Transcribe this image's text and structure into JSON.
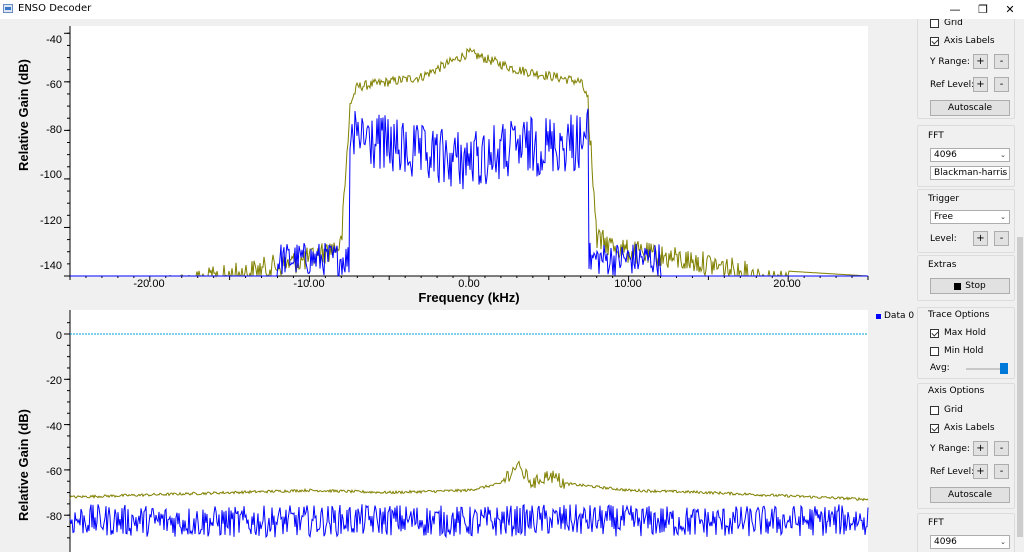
{
  "window": {
    "title": "ENSO Decoder",
    "minimize_glyph": "—",
    "restore_glyph": "❐",
    "close_glyph": "✕"
  },
  "top_plot": {
    "ylabel": "Relative Gain (dB)",
    "xlabel": "Frequency (kHz)",
    "y_ticks": [
      "-40",
      "-60",
      "-80",
      "-100",
      "-120",
      "-140"
    ],
    "x_ticks": [
      "-20.00",
      "-10.00",
      "0.00",
      "10.00",
      "20.00"
    ]
  },
  "bottom_plot": {
    "ylabel": "Relative Gain (dB)",
    "y_ticks": [
      "0",
      "-20",
      "-40",
      "-60",
      "-80"
    ],
    "legend": "Data 0"
  },
  "colors": {
    "max_hold": "#808000",
    "trace": "#0000ff",
    "ref_line": "#00a0e0",
    "accent": "#0078d7"
  },
  "sidebar": {
    "top_axis": {
      "grid_label": "Grid",
      "axis_labels_label": "Axis Labels",
      "y_range_label": "Y Range:",
      "ref_level_label": "Ref Level:",
      "plus": "+",
      "minus": "-",
      "autoscale_label": "Autoscale"
    },
    "fft": {
      "title": "FFT",
      "size": "4096",
      "window": "Blackman-harris"
    },
    "trigger": {
      "title": "Trigger",
      "mode": "Free",
      "level_label": "Level:",
      "plus": "+",
      "minus": "-"
    },
    "extras": {
      "title": "Extras",
      "stop_label": "Stop"
    },
    "trace_options": {
      "title": "Trace Options",
      "max_hold_label": "Max Hold",
      "min_hold_label": "Min Hold",
      "avg_label": "Avg:",
      "max_hold_checked": true,
      "min_hold_checked": false,
      "avg_level": 1.0
    },
    "axis_options": {
      "title": "Axis Options",
      "grid_label": "Grid",
      "axis_labels_label": "Axis Labels",
      "y_range_label": "Y Range:",
      "ref_level_label": "Ref Level:",
      "plus": "+",
      "minus": "-",
      "autoscale_label": "Autoscale",
      "grid_checked": false,
      "axis_labels_checked": true
    },
    "fft2": {
      "title": "FFT",
      "size": "4096"
    }
  },
  "chart_data": [
    {
      "type": "line",
      "xlabel": "Frequency (kHz)",
      "ylabel": "Relative Gain (dB)",
      "xlim": [
        -25,
        25
      ],
      "ylim": [
        -140,
        -37
      ],
      "grid": false,
      "series": [
        {
          "x": [
            -25,
            -20,
            -15,
            -10,
            -8,
            -7.5,
            -7,
            -3,
            0,
            3,
            7,
            7.5,
            8,
            10,
            15,
            20,
            25
          ],
          "values": [
            -140,
            -140,
            -135,
            -128,
            -122,
            -70,
            -62,
            -58,
            -48,
            -55,
            -60,
            -68,
            -120,
            -125,
            -130,
            -138,
            -140
          ]
        },
        {
          "x": [
            -25,
            -8,
            -7.5,
            -7,
            -3,
            0,
            3,
            7,
            7.5,
            8,
            25
          ],
          "values": [
            -140,
            -140,
            -75,
            -70,
            -78,
            -80,
            -75,
            -72,
            -70,
            -140,
            -140
          ]
        }
      ]
    },
    {
      "type": "line",
      "ylabel": "Relative Gain (dB)",
      "xlim": [
        -25,
        25
      ],
      "ylim": [
        -90,
        10
      ],
      "grid": false,
      "series": [
        {
          "x": [
            -25,
            -15,
            -10,
            -5,
            0,
            2,
            3,
            4,
            5,
            6,
            10,
            15,
            25
          ],
          "values": [
            -72,
            -70,
            -69,
            -70,
            -69,
            -66,
            -58,
            -66,
            -62,
            -66,
            -69,
            -70,
            -73
          ]
        },
        {
          "name": "Data 0",
          "x": [
            -25,
            -15,
            -5,
            0,
            5,
            15,
            25
          ],
          "values": [
            -82,
            -83,
            -82,
            -83,
            -82,
            -83,
            -82
          ]
        }
      ]
    }
  ]
}
